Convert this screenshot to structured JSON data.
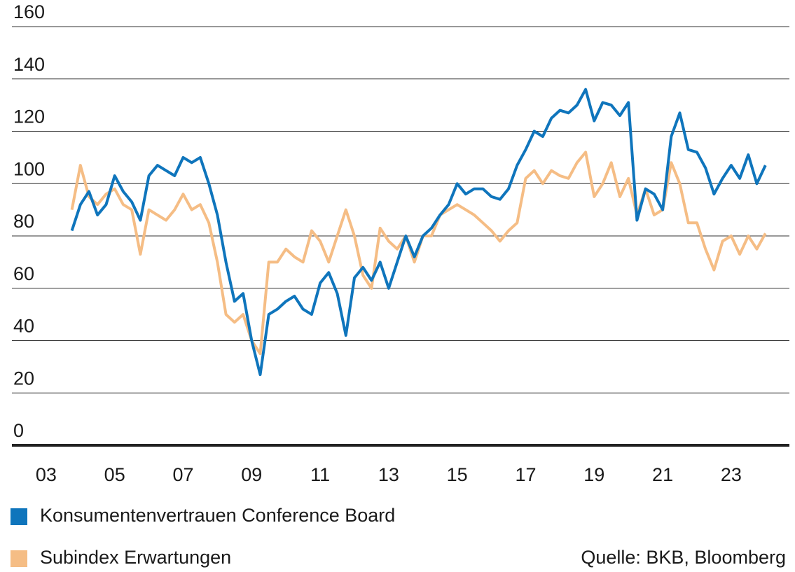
{
  "chart_data": {
    "type": "line",
    "x": [
      2003.75,
      2004,
      2004.25,
      2004.5,
      2004.75,
      2005,
      2005.25,
      2005.5,
      2005.75,
      2006,
      2006.25,
      2006.5,
      2006.75,
      2007,
      2007.25,
      2007.5,
      2007.75,
      2008,
      2008.25,
      2008.5,
      2008.75,
      2009,
      2009.25,
      2009.5,
      2009.75,
      2010,
      2010.25,
      2010.5,
      2010.75,
      2011,
      2011.25,
      2011.5,
      2011.75,
      2012,
      2012.25,
      2012.5,
      2012.75,
      2013,
      2013.25,
      2013.5,
      2013.75,
      2014,
      2014.25,
      2014.5,
      2014.75,
      2015,
      2015.25,
      2015.5,
      2015.75,
      2016,
      2016.25,
      2016.5,
      2016.75,
      2017,
      2017.25,
      2017.5,
      2017.75,
      2018,
      2018.25,
      2018.5,
      2018.75,
      2019,
      2019.25,
      2019.5,
      2019.75,
      2020,
      2020.25,
      2020.5,
      2020.75,
      2021,
      2021.25,
      2021.5,
      2021.75,
      2022,
      2022.25,
      2022.5,
      2022.75,
      2023,
      2023.25,
      2023.5,
      2023.75,
      2024
    ],
    "series": [
      {
        "name": "Konsumentenvertrauen Conference Board",
        "color": "#0f75bc",
        "values": [
          82,
          92,
          97,
          88,
          92,
          103,
          97,
          93,
          86,
          103,
          107,
          105,
          103,
          110,
          108,
          110,
          100,
          88,
          70,
          55,
          58,
          40,
          27,
          50,
          52,
          55,
          57,
          52,
          50,
          62,
          66,
          58,
          42,
          64,
          68,
          63,
          70,
          60,
          70,
          80,
          72,
          80,
          83,
          88,
          92,
          100,
          96,
          98,
          98,
          95,
          94,
          98,
          107,
          113,
          120,
          118,
          125,
          128,
          127,
          130,
          136,
          124,
          131,
          130,
          126,
          131,
          86,
          98,
          96,
          90,
          118,
          127,
          113,
          112,
          106,
          96,
          102,
          107,
          102,
          111,
          100,
          107
        ]
      },
      {
        "name": "Subindex Erwartungen",
        "color": "#f5bd85",
        "values": [
          90,
          107,
          95,
          92,
          96,
          98,
          92,
          90,
          73,
          90,
          88,
          86,
          90,
          96,
          90,
          92,
          85,
          70,
          50,
          47,
          50,
          40,
          35,
          70,
          70,
          75,
          72,
          70,
          82,
          78,
          70,
          80,
          90,
          80,
          65,
          60,
          83,
          78,
          75,
          80,
          70,
          80,
          80,
          88,
          90,
          92,
          90,
          88,
          85,
          82,
          78,
          82,
          85,
          102,
          105,
          100,
          105,
          103,
          102,
          108,
          112,
          95,
          100,
          108,
          95,
          102,
          88,
          98,
          88,
          90,
          108,
          100,
          85,
          85,
          75,
          67,
          78,
          80,
          73,
          80,
          75,
          81
        ]
      }
    ],
    "xlim": [
      2002,
      2024.7
    ],
    "xticks": [
      {
        "value": 2003,
        "label": "03"
      },
      {
        "value": 2005,
        "label": "05"
      },
      {
        "value": 2007,
        "label": "07"
      },
      {
        "value": 2009,
        "label": "09"
      },
      {
        "value": 2011,
        "label": "11"
      },
      {
        "value": 2013,
        "label": "13"
      },
      {
        "value": 2015,
        "label": "15"
      },
      {
        "value": 2017,
        "label": "17"
      },
      {
        "value": 2019,
        "label": "19"
      },
      {
        "value": 2021,
        "label": "21"
      },
      {
        "value": 2023,
        "label": "23"
      }
    ],
    "ylim": [
      0,
      160
    ],
    "yticks": [
      0,
      20,
      40,
      60,
      80,
      100,
      120,
      140,
      160
    ],
    "grid": true,
    "source": "Quelle: BKB, Bloomberg"
  }
}
